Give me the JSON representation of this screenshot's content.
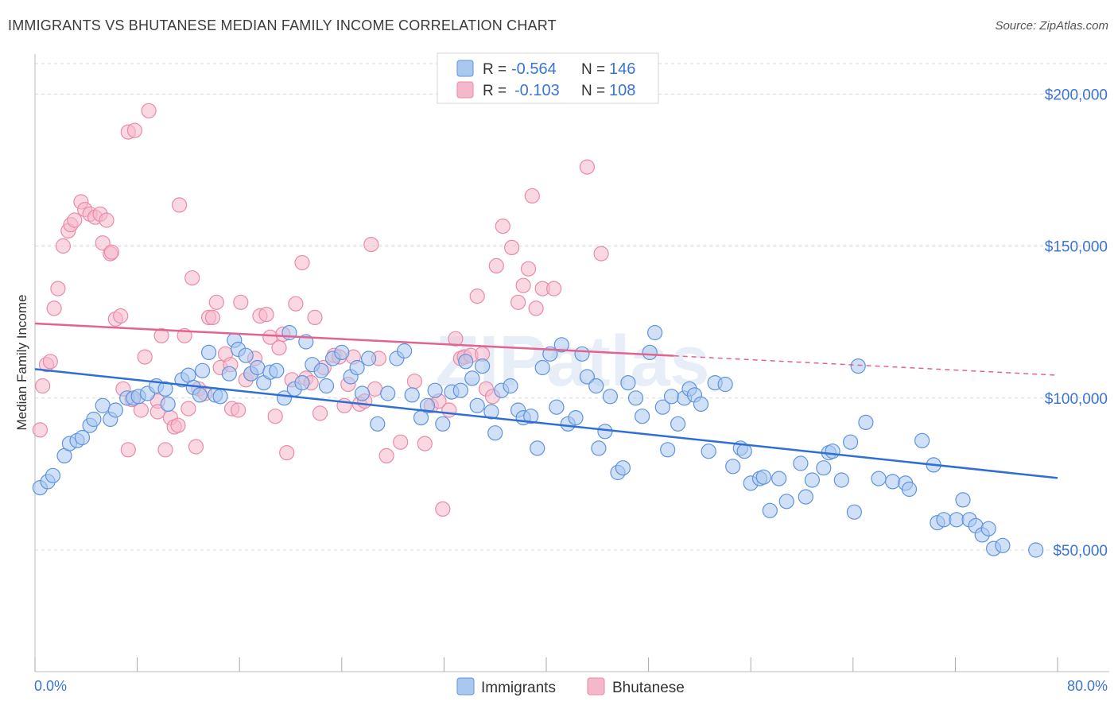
{
  "title": "IMMIGRANTS VS BHUTANESE MEDIAN FAMILY INCOME CORRELATION CHART",
  "source": "Source: ZipAtlas.com",
  "watermark": "ZIPatlas",
  "colors": {
    "immigrants_fill": "#a9c8f0",
    "immigrants_stroke": "#5f93dd",
    "immigrants_line": "#2f6fd2",
    "bhutanese_fill": "#f5b8cb",
    "bhutanese_stroke": "#e98aaa",
    "bhutanese_line": "#e2638f",
    "tick_text": "#3a74d6",
    "grid": "#d9d9d9"
  },
  "legend": {
    "rows": [
      {
        "r_label": "R = ",
        "r_value": "-0.564",
        "n_label": "N = ",
        "n_value": "146"
      },
      {
        "r_label": "R = ",
        "r_value": "-0.103",
        "n_label": "N = ",
        "n_value": "108"
      }
    ]
  },
  "bottom_legend": [
    "Immigrants",
    "Bhutanese"
  ],
  "chart_data": {
    "type": "scatter",
    "title": "IMMIGRANTS VS BHUTANESE MEDIAN FAMILY INCOME CORRELATION CHART",
    "xlabel": "",
    "ylabel": "Median Family Income",
    "xlim": [
      0,
      80
    ],
    "ylim": [
      10000,
      210000
    ],
    "x_tick_labels": [
      "0.0%",
      "80.0%"
    ],
    "y_ticks": [
      50000,
      100000,
      150000,
      200000
    ],
    "y_tick_labels": [
      "$50,000",
      "$100,000",
      "$150,000",
      "$200,000"
    ],
    "grid": true,
    "legend_position": "top-center",
    "series": [
      {
        "name": "Immigrants",
        "r": -0.564,
        "n": 146,
        "trend": {
          "x": [
            0,
            80
          ],
          "y": [
            109500,
            73700
          ],
          "dashed_from": null
        },
        "points": [
          [
            0.4,
            70500
          ],
          [
            1.0,
            72500
          ],
          [
            1.4,
            74500
          ],
          [
            2.3,
            81000
          ],
          [
            2.7,
            85000
          ],
          [
            3.3,
            86000
          ],
          [
            3.7,
            87000
          ],
          [
            4.3,
            91000
          ],
          [
            4.6,
            93000
          ],
          [
            5.3,
            97500
          ],
          [
            5.9,
            93000
          ],
          [
            6.3,
            96000
          ],
          [
            7.2,
            100000
          ],
          [
            7.7,
            100000
          ],
          [
            8.1,
            100500
          ],
          [
            8.8,
            101500
          ],
          [
            9.5,
            104000
          ],
          [
            10.2,
            103000
          ],
          [
            10.4,
            98000
          ],
          [
            11.5,
            106000
          ],
          [
            12.0,
            107500
          ],
          [
            12.4,
            103500
          ],
          [
            12.9,
            101000
          ],
          [
            13.1,
            109000
          ],
          [
            13.6,
            115000
          ],
          [
            14.1,
            101000
          ],
          [
            14.5,
            100500
          ],
          [
            15.2,
            108000
          ],
          [
            15.6,
            119000
          ],
          [
            15.9,
            116000
          ],
          [
            16.5,
            114000
          ],
          [
            16.9,
            108000
          ],
          [
            17.4,
            110000
          ],
          [
            17.9,
            105000
          ],
          [
            18.4,
            108500
          ],
          [
            18.9,
            109000
          ],
          [
            19.5,
            100000
          ],
          [
            19.9,
            121500
          ],
          [
            20.3,
            103000
          ],
          [
            20.9,
            105000
          ],
          [
            21.2,
            118500
          ],
          [
            21.7,
            111000
          ],
          [
            22.4,
            109000
          ],
          [
            22.8,
            104000
          ],
          [
            23.3,
            113000
          ],
          [
            24.0,
            115000
          ],
          [
            24.7,
            107000
          ],
          [
            25.2,
            110000
          ],
          [
            25.6,
            101500
          ],
          [
            26.1,
            113000
          ],
          [
            26.8,
            91500
          ],
          [
            27.6,
            101500
          ],
          [
            28.3,
            113000
          ],
          [
            28.9,
            115500
          ],
          [
            29.5,
            101000
          ],
          [
            30.2,
            93500
          ],
          [
            30.7,
            97500
          ],
          [
            31.3,
            102500
          ],
          [
            31.9,
            91500
          ],
          [
            32.6,
            102000
          ],
          [
            33.3,
            102500
          ],
          [
            33.7,
            112000
          ],
          [
            34.2,
            106500
          ],
          [
            34.6,
            97500
          ],
          [
            35.0,
            110500
          ],
          [
            35.7,
            95500
          ],
          [
            36.0,
            88500
          ],
          [
            36.5,
            102500
          ],
          [
            37.2,
            104000
          ],
          [
            37.8,
            96000
          ],
          [
            38.2,
            93500
          ],
          [
            38.8,
            94000
          ],
          [
            39.3,
            83500
          ],
          [
            39.7,
            110000
          ],
          [
            40.3,
            114500
          ],
          [
            40.8,
            97000
          ],
          [
            41.2,
            117500
          ],
          [
            41.7,
            91500
          ],
          [
            42.3,
            93500
          ],
          [
            42.8,
            114500
          ],
          [
            43.2,
            107000
          ],
          [
            43.9,
            104000
          ],
          [
            44.1,
            83500
          ],
          [
            44.6,
            89000
          ],
          [
            45.0,
            100500
          ],
          [
            45.6,
            75500
          ],
          [
            46.0,
            77000
          ],
          [
            46.4,
            105000
          ],
          [
            47.0,
            100000
          ],
          [
            47.5,
            94000
          ],
          [
            48.1,
            115000
          ],
          [
            48.5,
            121500
          ],
          [
            49.1,
            97000
          ],
          [
            49.5,
            83000
          ],
          [
            49.8,
            100500
          ],
          [
            50.3,
            91500
          ],
          [
            50.8,
            100000
          ],
          [
            51.2,
            103000
          ],
          [
            51.6,
            101000
          ],
          [
            52.1,
            98000
          ],
          [
            52.7,
            82500
          ],
          [
            53.2,
            105000
          ],
          [
            54.0,
            104500
          ],
          [
            54.6,
            77500
          ],
          [
            55.2,
            83500
          ],
          [
            55.5,
            82500
          ],
          [
            56.0,
            72000
          ],
          [
            56.7,
            73500
          ],
          [
            57.0,
            74000
          ],
          [
            57.5,
            63000
          ],
          [
            58.2,
            73500
          ],
          [
            58.8,
            66000
          ],
          [
            59.9,
            78500
          ],
          [
            60.3,
            67500
          ],
          [
            60.8,
            73000
          ],
          [
            61.7,
            77000
          ],
          [
            62.1,
            82000
          ],
          [
            62.4,
            82500
          ],
          [
            63.1,
            73000
          ],
          [
            63.8,
            85500
          ],
          [
            64.1,
            62500
          ],
          [
            64.4,
            110500
          ],
          [
            65.0,
            92000
          ],
          [
            66.0,
            73500
          ],
          [
            67.1,
            72500
          ],
          [
            68.1,
            72000
          ],
          [
            68.4,
            70000
          ],
          [
            69.4,
            86000
          ],
          [
            70.3,
            78000
          ],
          [
            70.6,
            59000
          ],
          [
            71.1,
            60000
          ],
          [
            72.1,
            60000
          ],
          [
            72.6,
            66500
          ],
          [
            73.1,
            60000
          ],
          [
            73.6,
            58000
          ],
          [
            74.1,
            55000
          ],
          [
            74.6,
            57000
          ],
          [
            75.0,
            50500
          ],
          [
            75.7,
            51500
          ],
          [
            78.3,
            50000
          ]
        ]
      },
      {
        "name": "Bhutanese",
        "r": -0.103,
        "n": 108,
        "trend": {
          "x": [
            0,
            80
          ],
          "y": [
            124500,
            107500
          ],
          "dashed_from": 50
        },
        "points": [
          [
            0.4,
            89500
          ],
          [
            0.6,
            104000
          ],
          [
            0.9,
            111000
          ],
          [
            1.2,
            112000
          ],
          [
            1.5,
            129500
          ],
          [
            1.8,
            136000
          ],
          [
            2.2,
            150000
          ],
          [
            2.6,
            155000
          ],
          [
            2.8,
            157000
          ],
          [
            3.1,
            158500
          ],
          [
            3.6,
            164500
          ],
          [
            3.9,
            162000
          ],
          [
            4.3,
            160500
          ],
          [
            4.7,
            159500
          ],
          [
            5.1,
            160500
          ],
          [
            5.3,
            151000
          ],
          [
            5.6,
            158500
          ],
          [
            5.9,
            147500
          ],
          [
            6.0,
            148000
          ],
          [
            6.3,
            126000
          ],
          [
            6.7,
            127000
          ],
          [
            6.9,
            103000
          ],
          [
            7.3,
            83000
          ],
          [
            7.6,
            99500
          ],
          [
            7.3,
            187500
          ],
          [
            7.8,
            188000
          ],
          [
            8.3,
            96000
          ],
          [
            8.6,
            113500
          ],
          [
            8.9,
            194500
          ],
          [
            9.6,
            99000
          ],
          [
            9.9,
            120500
          ],
          [
            9.6,
            95500
          ],
          [
            10.2,
            83000
          ],
          [
            10.6,
            93500
          ],
          [
            10.9,
            90500
          ],
          [
            11.2,
            91000
          ],
          [
            11.3,
            163500
          ],
          [
            11.7,
            120500
          ],
          [
            12.0,
            96500
          ],
          [
            12.3,
            139500
          ],
          [
            12.6,
            84000
          ],
          [
            12.8,
            103000
          ],
          [
            13.3,
            101500
          ],
          [
            13.6,
            126500
          ],
          [
            13.9,
            126500
          ],
          [
            14.2,
            131500
          ],
          [
            14.5,
            110000
          ],
          [
            14.9,
            114500
          ],
          [
            15.3,
            111000
          ],
          [
            15.4,
            96500
          ],
          [
            15.9,
            96000
          ],
          [
            16.1,
            131500
          ],
          [
            16.5,
            106000
          ],
          [
            16.9,
            108000
          ],
          [
            17.2,
            113000
          ],
          [
            17.6,
            127000
          ],
          [
            18.1,
            127500
          ],
          [
            18.4,
            120000
          ],
          [
            18.8,
            94000
          ],
          [
            19.1,
            116500
          ],
          [
            19.4,
            121000
          ],
          [
            19.7,
            82000
          ],
          [
            20.1,
            106000
          ],
          [
            20.4,
            131000
          ],
          [
            20.9,
            144500
          ],
          [
            21.2,
            106500
          ],
          [
            21.6,
            105000
          ],
          [
            21.9,
            126500
          ],
          [
            22.3,
            95000
          ],
          [
            22.6,
            110000
          ],
          [
            23.4,
            114000
          ],
          [
            23.8,
            113500
          ],
          [
            24.2,
            97500
          ],
          [
            24.5,
            104500
          ],
          [
            24.9,
            113500
          ],
          [
            25.4,
            98000
          ],
          [
            25.8,
            99000
          ],
          [
            26.3,
            150500
          ],
          [
            26.6,
            103000
          ],
          [
            26.9,
            113000
          ],
          [
            27.5,
            81000
          ],
          [
            28.6,
            85500
          ],
          [
            29.7,
            105500
          ],
          [
            30.5,
            85000
          ],
          [
            31.0,
            97500
          ],
          [
            31.6,
            99000
          ],
          [
            31.9,
            63500
          ],
          [
            32.4,
            96000
          ],
          [
            32.9,
            119500
          ],
          [
            33.3,
            113000
          ],
          [
            33.6,
            113500
          ],
          [
            34.1,
            114000
          ],
          [
            34.6,
            133500
          ],
          [
            35.0,
            114500
          ],
          [
            35.3,
            103000
          ],
          [
            35.8,
            100500
          ],
          [
            36.1,
            143500
          ],
          [
            36.6,
            156500
          ],
          [
            37.3,
            149500
          ],
          [
            37.8,
            131500
          ],
          [
            38.2,
            137000
          ],
          [
            38.6,
            142500
          ],
          [
            38.9,
            166500
          ],
          [
            39.2,
            129500
          ],
          [
            39.7,
            136000
          ],
          [
            40.6,
            136000
          ],
          [
            43.2,
            176000
          ],
          [
            44.3,
            147500
          ]
        ]
      }
    ]
  }
}
